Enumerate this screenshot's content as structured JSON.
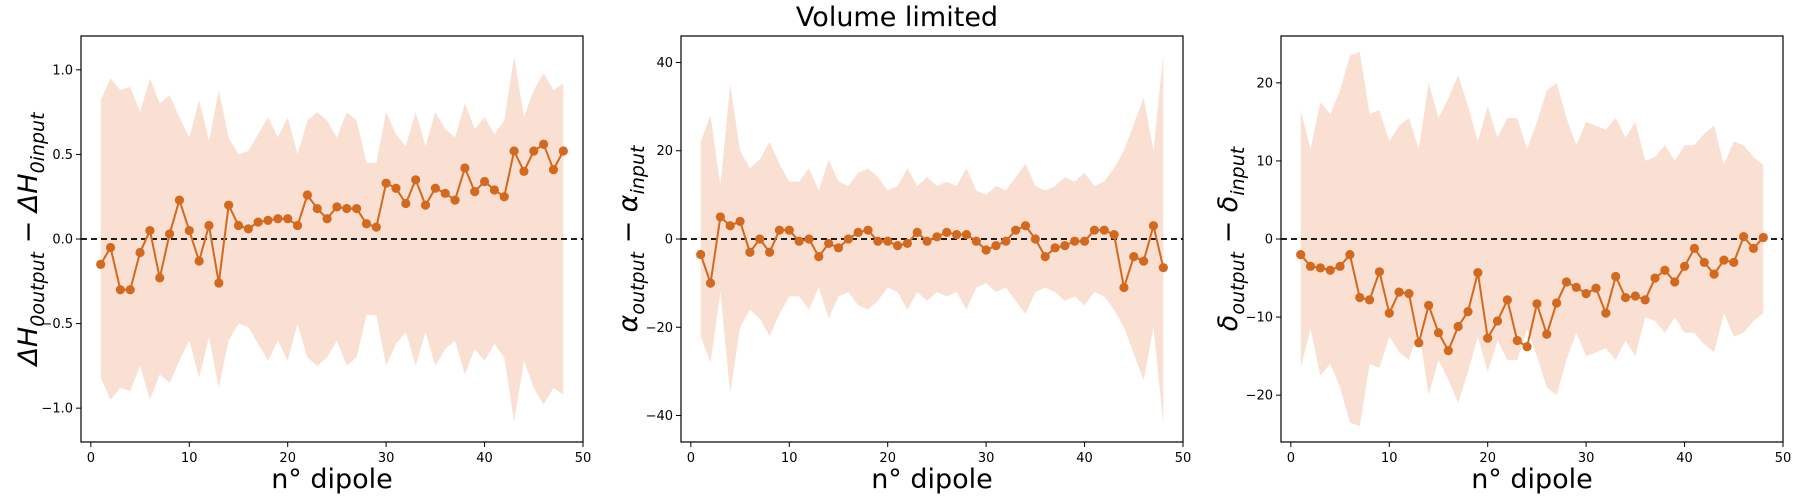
{
  "figure": {
    "title": "Volume limited"
  },
  "colors": {
    "line": "#d2691e",
    "band": "#f9e0d2",
    "reference": "#000000"
  },
  "chart_data": [
    {
      "type": "line",
      "xlabel": "n° dipole",
      "ylabel": {
        "main": "ΔH",
        "main_sub": "0output",
        "op": " − ",
        "minus": "ΔH",
        "minus_sub": "0input"
      },
      "xlim": [
        -1,
        50
      ],
      "ylim": [
        -1.2,
        1.2
      ],
      "xticks": [
        0,
        10,
        20,
        30,
        40,
        50
      ],
      "yticks": [
        -1.0,
        -0.5,
        0.0,
        0.5,
        1.0
      ],
      "ytick_labels": [
        "−1.0",
        "−0.5",
        "0.0",
        "0.5",
        "1.0"
      ],
      "reference_line": 0,
      "x": [
        1,
        2,
        3,
        4,
        5,
        6,
        7,
        8,
        9,
        10,
        11,
        12,
        13,
        14,
        15,
        16,
        17,
        18,
        19,
        20,
        21,
        22,
        23,
        24,
        25,
        26,
        27,
        28,
        29,
        30,
        31,
        32,
        33,
        34,
        35,
        36,
        37,
        38,
        39,
        40,
        41,
        42,
        43,
        44,
        45,
        46,
        47,
        48
      ],
      "values": [
        -0.15,
        -0.05,
        -0.3,
        -0.3,
        -0.08,
        0.05,
        -0.23,
        0.03,
        0.23,
        0.05,
        -0.13,
        0.08,
        -0.26,
        0.2,
        0.08,
        0.06,
        0.1,
        0.11,
        0.12,
        0.12,
        0.08,
        0.26,
        0.18,
        0.12,
        0.19,
        0.18,
        0.18,
        0.09,
        0.07,
        0.33,
        0.3,
        0.21,
        0.35,
        0.2,
        0.3,
        0.27,
        0.23,
        0.42,
        0.28,
        0.34,
        0.29,
        0.25,
        0.52,
        0.4,
        0.52,
        0.56,
        0.41,
        0.52
      ],
      "band_upper": [
        0.82,
        0.95,
        0.88,
        0.9,
        0.75,
        0.95,
        0.8,
        0.85,
        0.72,
        0.6,
        0.82,
        0.58,
        0.88,
        0.6,
        0.5,
        0.52,
        0.62,
        0.72,
        0.6,
        0.72,
        0.5,
        0.7,
        0.75,
        0.7,
        0.6,
        0.75,
        0.7,
        0.45,
        0.45,
        0.75,
        0.62,
        0.55,
        0.75,
        0.55,
        0.75,
        0.65,
        0.6,
        0.8,
        0.65,
        0.72,
        0.62,
        0.7,
        1.08,
        0.72,
        0.88,
        0.98,
        0.88,
        0.92
      ],
      "band_lower": [
        -0.82,
        -0.95,
        -0.88,
        -0.9,
        -0.75,
        -0.95,
        -0.8,
        -0.85,
        -0.72,
        -0.6,
        -0.82,
        -0.58,
        -0.88,
        -0.6,
        -0.5,
        -0.52,
        -0.62,
        -0.72,
        -0.6,
        -0.72,
        -0.5,
        -0.7,
        -0.75,
        -0.7,
        -0.6,
        -0.75,
        -0.7,
        -0.45,
        -0.45,
        -0.75,
        -0.62,
        -0.55,
        -0.75,
        -0.55,
        -0.75,
        -0.65,
        -0.6,
        -0.8,
        -0.65,
        -0.72,
        -0.62,
        -0.7,
        -1.08,
        -0.72,
        -0.88,
        -0.98,
        -0.88,
        -0.92
      ]
    },
    {
      "type": "line",
      "xlabel": "n° dipole",
      "ylabel": {
        "main": "α",
        "main_sub": "output",
        "op": " − ",
        "minus": "α",
        "minus_sub": "input"
      },
      "xlim": [
        -1,
        50
      ],
      "ylim": [
        -46,
        46
      ],
      "xticks": [
        0,
        10,
        20,
        30,
        40,
        50
      ],
      "yticks": [
        -40,
        -20,
        0,
        20,
        40
      ],
      "ytick_labels": [
        "−40",
        "−20",
        "0",
        "20",
        "40"
      ],
      "reference_line": 0,
      "x": [
        1,
        2,
        3,
        4,
        5,
        6,
        7,
        8,
        9,
        10,
        11,
        12,
        13,
        14,
        15,
        16,
        17,
        18,
        19,
        20,
        21,
        22,
        23,
        24,
        25,
        26,
        27,
        28,
        29,
        30,
        31,
        32,
        33,
        34,
        35,
        36,
        37,
        38,
        39,
        40,
        41,
        42,
        43,
        44,
        45,
        46,
        47,
        48
      ],
      "values": [
        -3.5,
        -10,
        5,
        3,
        4,
        -3,
        0,
        -3,
        2,
        2,
        -0.5,
        0,
        -4,
        -1,
        -2,
        0,
        1.5,
        2,
        -0.5,
        -0.5,
        -1.5,
        -1,
        1.5,
        -0.5,
        0.5,
        1.5,
        1,
        1,
        -0.5,
        -2.5,
        -1.5,
        -0.5,
        2,
        3,
        0,
        -4,
        -2,
        -1.5,
        -0.5,
        -0.5,
        2,
        2,
        1,
        -11,
        -4,
        -5,
        3,
        -6.5
      ],
      "band_upper": [
        22,
        28,
        12,
        35,
        20,
        16,
        18,
        22,
        17,
        13,
        13,
        16,
        11,
        18,
        13,
        12,
        15,
        16,
        14,
        11,
        12,
        16,
        12,
        14,
        12,
        13,
        12,
        16,
        11,
        10,
        12,
        11,
        14,
        17,
        12,
        11,
        12,
        14,
        13,
        15,
        12,
        13,
        16,
        20,
        26,
        32,
        20,
        42
      ],
      "band_lower": [
        -22,
        -28,
        -12,
        -35,
        -20,
        -16,
        -18,
        -22,
        -17,
        -13,
        -13,
        -16,
        -11,
        -18,
        -13,
        -12,
        -15,
        -16,
        -14,
        -11,
        -12,
        -16,
        -12,
        -14,
        -12,
        -13,
        -12,
        -16,
        -11,
        -10,
        -12,
        -11,
        -14,
        -17,
        -12,
        -11,
        -12,
        -14,
        -13,
        -15,
        -12,
        -13,
        -16,
        -20,
        -26,
        -32,
        -20,
        -42
      ]
    },
    {
      "type": "line",
      "xlabel": "n° dipole",
      "ylabel": {
        "main": "δ",
        "main_sub": "output",
        "op": " − ",
        "minus": "δ",
        "minus_sub": "input"
      },
      "xlim": [
        -1,
        50
      ],
      "ylim": [
        -26,
        26
      ],
      "xticks": [
        0,
        10,
        20,
        30,
        40,
        50
      ],
      "yticks": [
        -20,
        -10,
        0,
        10,
        20
      ],
      "ytick_labels": [
        "−20",
        "−10",
        "0",
        "10",
        "20"
      ],
      "reference_line": 0,
      "x": [
        1,
        2,
        3,
        4,
        5,
        6,
        7,
        8,
        9,
        10,
        11,
        12,
        13,
        14,
        15,
        16,
        17,
        18,
        19,
        20,
        21,
        22,
        23,
        24,
        25,
        26,
        27,
        28,
        29,
        30,
        31,
        32,
        33,
        34,
        35,
        36,
        37,
        38,
        39,
        40,
        41,
        42,
        43,
        44,
        45,
        46,
        47,
        48
      ],
      "values": [
        -2,
        -3.5,
        -3.7,
        -4,
        -3.5,
        -2,
        -7.5,
        -7.8,
        -4.2,
        -9.5,
        -6.8,
        -7,
        -13.3,
        -8.5,
        -12,
        -14.3,
        -11.2,
        -9.3,
        -4.3,
        -12.7,
        -10.5,
        -7.8,
        -13,
        -13.8,
        -8.3,
        -12.2,
        -8.2,
        -5.5,
        -6.2,
        -7,
        -6.3,
        -9.5,
        -4.8,
        -7.5,
        -7.3,
        -7.8,
        -5,
        -4,
        -5.5,
        -3.5,
        -1.2,
        -3,
        -4.5,
        -2.7,
        -3,
        0.3,
        -1.2,
        0.2
      ],
      "band_upper": [
        16.5,
        11.5,
        17.5,
        16,
        19,
        23.5,
        24,
        16,
        16.5,
        12.5,
        14.5,
        15.5,
        11.5,
        20,
        15.5,
        18,
        21,
        17,
        12.5,
        17,
        13,
        15.5,
        15.5,
        11.5,
        15,
        19,
        20,
        15.5,
        12,
        15,
        14.5,
        14,
        15.5,
        13,
        15,
        10,
        10.5,
        12,
        10,
        12,
        12,
        13.5,
        14.5,
        9.5,
        12.5,
        12,
        10.5,
        9.5
      ],
      "band_lower": [
        -16.5,
        -11.5,
        -17.5,
        -16,
        -19,
        -23.5,
        -24,
        -16,
        -16.5,
        -12.5,
        -14.5,
        -15.5,
        -11.5,
        -20,
        -15.5,
        -18,
        -21,
        -17,
        -12.5,
        -17,
        -13,
        -15.5,
        -15.5,
        -11.5,
        -15,
        -19,
        -20,
        -15.5,
        -12,
        -15,
        -14.5,
        -14,
        -15.5,
        -13,
        -15,
        -10,
        -10.5,
        -12,
        -10,
        -12,
        -12,
        -13.5,
        -14.5,
        -9.5,
        -12.5,
        -12,
        -10.5,
        -9.5
      ]
    }
  ]
}
